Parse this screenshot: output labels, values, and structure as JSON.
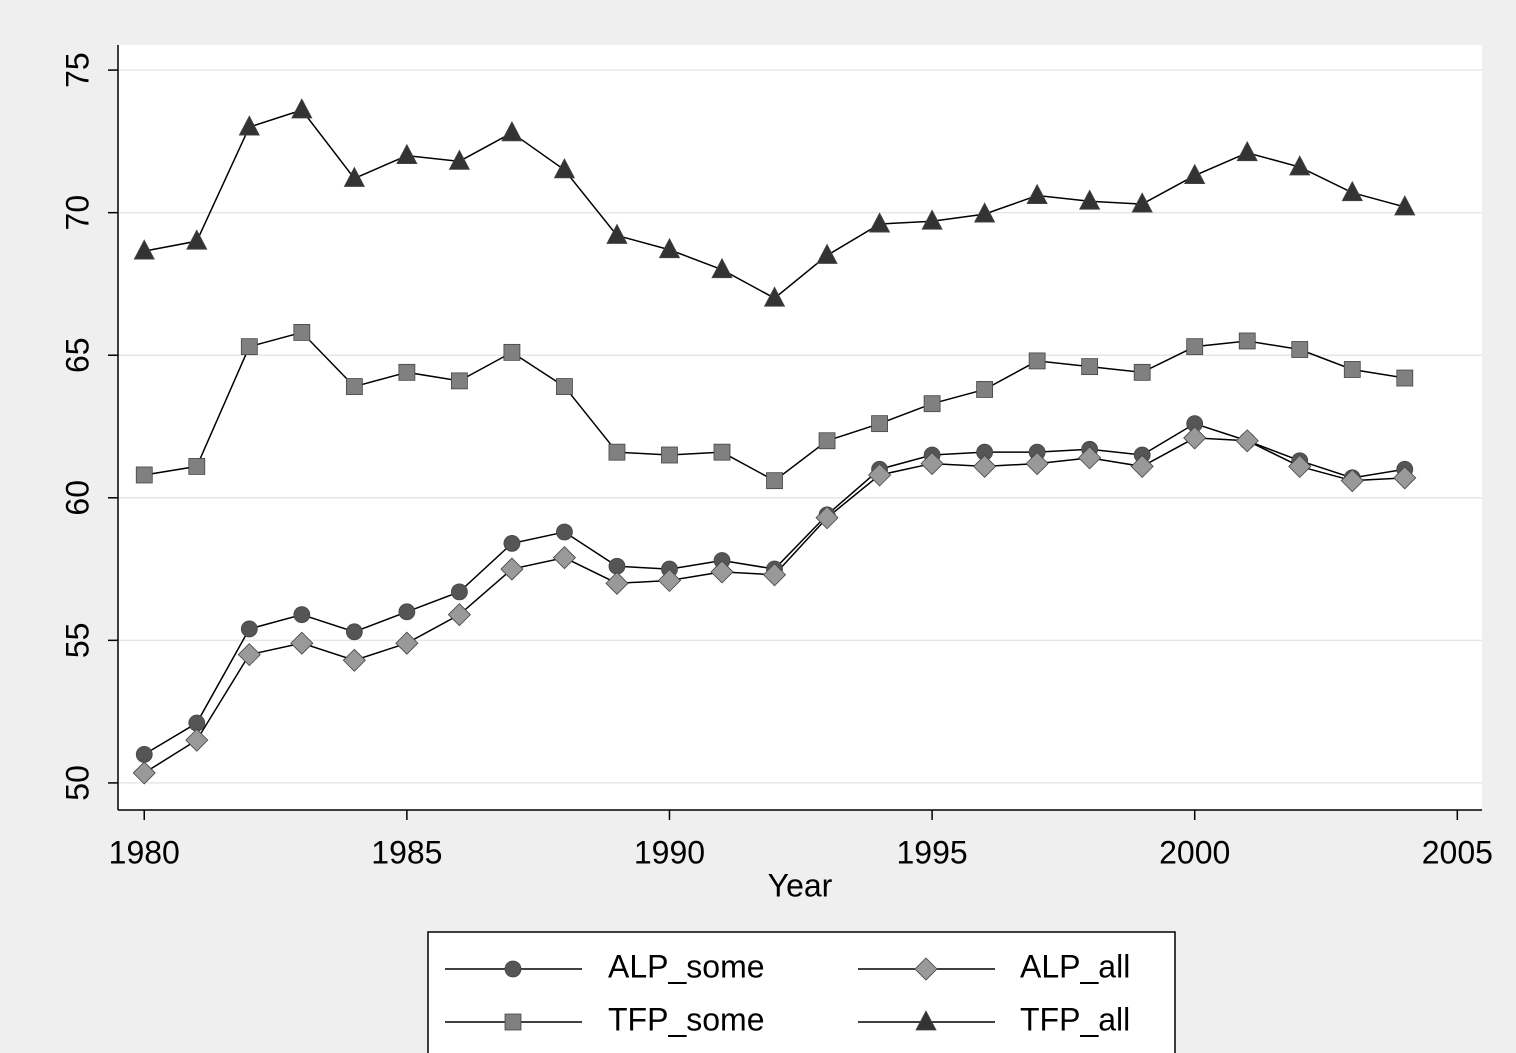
{
  "chart_data": {
    "type": "line",
    "x_label": "Year",
    "x": [
      1980,
      1981,
      1982,
      1983,
      1984,
      1985,
      1986,
      1987,
      1988,
      1989,
      1990,
      1991,
      1992,
      1993,
      1994,
      1995,
      1996,
      1997,
      1998,
      1999,
      2000,
      2001,
      2002,
      2003,
      2004
    ],
    "series": [
      {
        "name": "ALP_some",
        "color": "#555555",
        "marker": "circle",
        "values": [
          51.0,
          52.1,
          55.4,
          55.9,
          55.3,
          56.0,
          56.7,
          58.4,
          58.8,
          57.6,
          57.5,
          57.8,
          57.5,
          59.4,
          61.0,
          61.5,
          61.6,
          61.6,
          61.7,
          61.5,
          62.6,
          62.0,
          61.3,
          60.7,
          61.0
        ]
      },
      {
        "name": "ALP_all",
        "color": "#999999",
        "marker": "diamond",
        "values": [
          50.35,
          51.5,
          54.5,
          54.9,
          54.3,
          54.9,
          55.9,
          57.5,
          57.9,
          57.0,
          57.1,
          57.4,
          57.3,
          59.3,
          60.8,
          61.2,
          61.1,
          61.2,
          61.4,
          61.1,
          62.1,
          62.0,
          61.1,
          60.6,
          60.7
        ]
      },
      {
        "name": "TFP_some",
        "color": "#808080",
        "marker": "square",
        "values": [
          60.8,
          61.1,
          65.3,
          65.8,
          63.9,
          64.4,
          64.1,
          65.1,
          63.9,
          61.6,
          61.5,
          61.6,
          60.6,
          62.0,
          62.6,
          63.3,
          63.8,
          64.8,
          64.6,
          64.4,
          65.3,
          65.5,
          65.2,
          64.5,
          64.2
        ]
      },
      {
        "name": "TFP_all",
        "color": "#333333",
        "marker": "triangle",
        "values": [
          68.65,
          69.0,
          73.0,
          73.6,
          71.2,
          72.0,
          71.8,
          72.8,
          71.5,
          69.2,
          68.7,
          68.0,
          67.0,
          68.5,
          69.6,
          69.7,
          69.95,
          70.6,
          70.4,
          70.3,
          71.3,
          72.1,
          71.6,
          70.7,
          70.2
        ]
      }
    ],
    "xlim": [
      1979.5,
      2005.47
    ],
    "xticks": [
      1980,
      1985,
      1990,
      1995,
      2000,
      2005
    ],
    "ylim": [
      49.05,
      75.88
    ],
    "yticks": [
      50,
      55,
      60,
      65,
      70,
      75
    ],
    "grid": true,
    "legend": "bottom"
  }
}
